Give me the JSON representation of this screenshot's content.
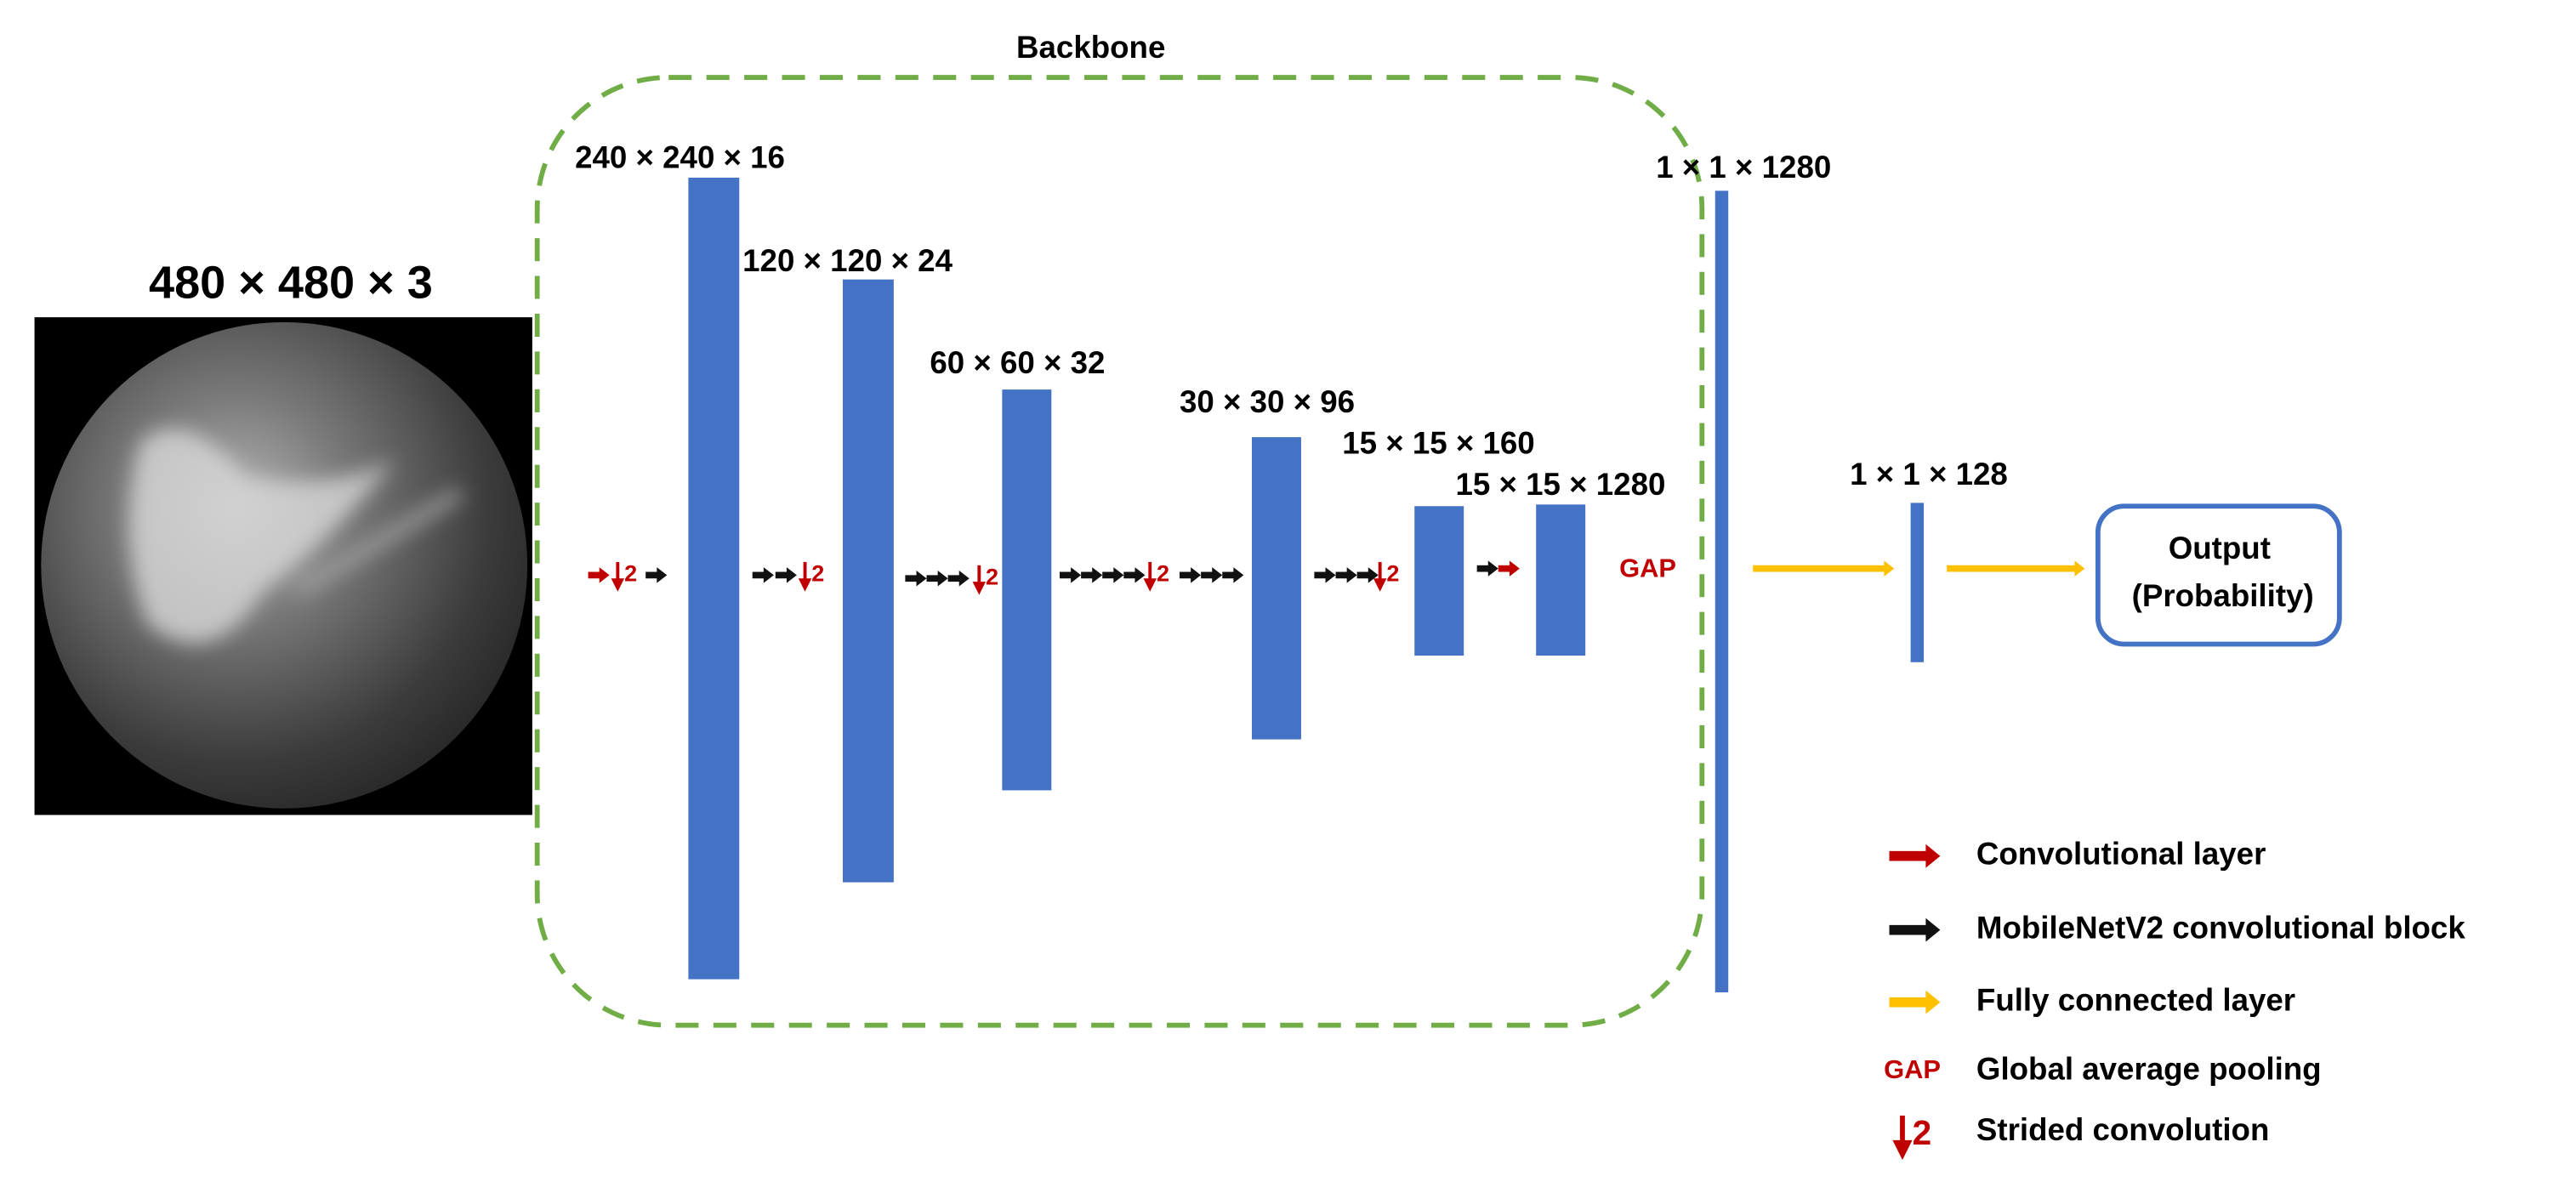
{
  "title": "Backbone",
  "input": {
    "label": "480 × 480 × 3"
  },
  "layers": [
    {
      "label": "240 × 240 × 16"
    },
    {
      "label": "120 × 120 × 24"
    },
    {
      "label": "60 × 60 × 32"
    },
    {
      "label": "30 × 30 × 96"
    },
    {
      "label": "15 × 15 × 160"
    },
    {
      "label": "15 × 15 × 1280"
    },
    {
      "label": "1 × 1 × 1280"
    },
    {
      "label": "1 × 1 × 128"
    }
  ],
  "gap_label": "GAP",
  "stride_label": "2",
  "output": {
    "line1": "Output",
    "line2": "(Probability)"
  },
  "legend": [
    {
      "label": "Convolutional layer"
    },
    {
      "label": "MobileNetV2 convolutional block"
    },
    {
      "label": "Fully connected layer"
    },
    {
      "label": "Global average pooling"
    },
    {
      "label": "Strided convolution"
    }
  ]
}
